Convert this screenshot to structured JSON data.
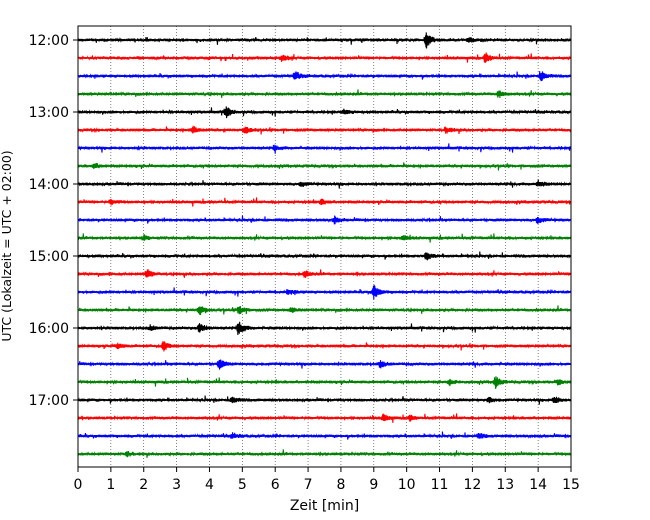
{
  "chart_data": {
    "type": "line",
    "title": "",
    "xlabel": "Zeit  [min]",
    "ylabel": "UTC (Lokalzeit = UTC + 02:00)",
    "xlim": [
      0,
      15
    ],
    "x_ticks": [
      0,
      1,
      2,
      3,
      4,
      5,
      6,
      7,
      8,
      9,
      10,
      11,
      12,
      13,
      14,
      15
    ],
    "x_tick_labels": [
      "0",
      "1",
      "2",
      "3",
      "4",
      "5",
      "6",
      "7",
      "8",
      "9",
      "10",
      "11",
      "12",
      "13",
      "14",
      "15"
    ],
    "y_ticks": [
      "12:00",
      "13:00",
      "14:00",
      "15:00",
      "16:00",
      "17:00"
    ],
    "grid": "vertical dotted at each minute",
    "trace_interval_min": 15,
    "trace_colors": [
      "#000000",
      "#ff0000",
      "#0000ff",
      "#008000"
    ],
    "series": [
      {
        "start": "12:00",
        "events": [
          {
            "t": 10.6,
            "amp": 1.0
          },
          {
            "t": 11.9,
            "amp": 0.3
          }
        ]
      },
      {
        "start": "12:15",
        "events": [
          {
            "t": 6.2,
            "amp": 0.4
          },
          {
            "t": 12.4,
            "amp": 0.6
          }
        ]
      },
      {
        "start": "12:30",
        "events": [
          {
            "t": 6.6,
            "amp": 0.5
          },
          {
            "t": 14.1,
            "amp": 0.6
          }
        ]
      },
      {
        "start": "12:45",
        "events": [
          {
            "t": 12.8,
            "amp": 0.4
          }
        ]
      },
      {
        "start": "13:00",
        "events": [
          {
            "t": 4.5,
            "amp": 0.7
          },
          {
            "t": 8.1,
            "amp": 0.3
          }
        ]
      },
      {
        "start": "13:15",
        "events": [
          {
            "t": 3.5,
            "amp": 0.4
          },
          {
            "t": 5.1,
            "amp": 0.5
          },
          {
            "t": 11.2,
            "amp": 0.4
          }
        ]
      },
      {
        "start": "13:30",
        "events": [
          {
            "t": 6.0,
            "amp": 0.3
          }
        ]
      },
      {
        "start": "13:45",
        "events": [
          {
            "t": 0.5,
            "amp": 0.3
          }
        ]
      },
      {
        "start": "14:00",
        "events": [
          {
            "t": 6.8,
            "amp": 0.3
          },
          {
            "t": 14.0,
            "amp": 0.4
          }
        ]
      },
      {
        "start": "14:15",
        "events": [
          {
            "t": 1.0,
            "amp": 0.3
          },
          {
            "t": 7.4,
            "amp": 0.3
          }
        ]
      },
      {
        "start": "14:30",
        "events": [
          {
            "t": 7.8,
            "amp": 0.4
          },
          {
            "t": 14.0,
            "amp": 0.4
          }
        ]
      },
      {
        "start": "14:45",
        "events": [
          {
            "t": 2.0,
            "amp": 0.3
          },
          {
            "t": 9.9,
            "amp": 0.3
          }
        ]
      },
      {
        "start": "15:00",
        "events": [
          {
            "t": 10.6,
            "amp": 0.5
          }
        ]
      },
      {
        "start": "15:15",
        "events": [
          {
            "t": 2.1,
            "amp": 0.6
          },
          {
            "t": 6.9,
            "amp": 0.4
          }
        ]
      },
      {
        "start": "15:30",
        "events": [
          {
            "t": 9.0,
            "amp": 0.9
          },
          {
            "t": 6.4,
            "amp": 0.3
          }
        ]
      },
      {
        "start": "15:45",
        "events": [
          {
            "t": 3.7,
            "amp": 0.6
          },
          {
            "t": 4.9,
            "amp": 0.5
          },
          {
            "t": 6.5,
            "amp": 0.3
          }
        ]
      },
      {
        "start": "16:00",
        "events": [
          {
            "t": 3.7,
            "amp": 0.6
          },
          {
            "t": 4.9,
            "amp": 0.9
          },
          {
            "t": 2.2,
            "amp": 0.3
          }
        ]
      },
      {
        "start": "16:15",
        "events": [
          {
            "t": 2.6,
            "amp": 0.6
          },
          {
            "t": 1.2,
            "amp": 0.3
          }
        ]
      },
      {
        "start": "16:30",
        "events": [
          {
            "t": 4.3,
            "amp": 0.6
          },
          {
            "t": 9.2,
            "amp": 0.4
          }
        ]
      },
      {
        "start": "16:45",
        "events": [
          {
            "t": 11.3,
            "amp": 0.4
          },
          {
            "t": 12.7,
            "amp": 0.7
          },
          {
            "t": 14.6,
            "amp": 0.3
          }
        ]
      },
      {
        "start": "17:00",
        "events": [
          {
            "t": 4.7,
            "amp": 0.4
          },
          {
            "t": 14.5,
            "amp": 0.4
          },
          {
            "t": 12.5,
            "amp": 0.3
          }
        ]
      },
      {
        "start": "17:15",
        "events": [
          {
            "t": 9.3,
            "amp": 0.4
          },
          {
            "t": 10.1,
            "amp": 0.3
          }
        ]
      },
      {
        "start": "17:30",
        "events": [
          {
            "t": 4.7,
            "amp": 0.3
          },
          {
            "t": 12.2,
            "amp": 0.3
          }
        ]
      },
      {
        "start": "17:45",
        "events": [
          {
            "t": 1.5,
            "amp": 0.3
          }
        ]
      }
    ]
  }
}
